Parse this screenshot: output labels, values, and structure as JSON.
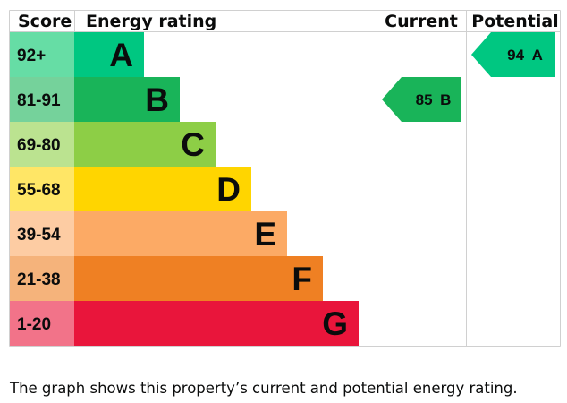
{
  "chart_data": {
    "type": "bar",
    "headers": {
      "score": "Score",
      "rating": "Energy rating",
      "current": "Current",
      "potential": "Potential"
    },
    "bands": [
      {
        "letter": "A",
        "range": "92+",
        "color": "#00c781",
        "score_color": "#66dda5"
      },
      {
        "letter": "B",
        "range": "81-91",
        "color": "#19b459",
        "score_color": "#75d29b"
      },
      {
        "letter": "C",
        "range": "69-80",
        "color": "#8dce46",
        "score_color": "#bbe390"
      },
      {
        "letter": "D",
        "range": "55-68",
        "color": "#ffd500",
        "score_color": "#ffe666"
      },
      {
        "letter": "E",
        "range": "39-54",
        "color": "#fcaa65",
        "score_color": "#fdcca3"
      },
      {
        "letter": "F",
        "range": "21-38",
        "color": "#ef8023",
        "score_color": "#f5b37b"
      },
      {
        "letter": "G",
        "range": "1-20",
        "color": "#e9153b",
        "score_color": "#f27389"
      }
    ],
    "current": {
      "value": 85,
      "band": "B",
      "label": "85 B"
    },
    "potential": {
      "value": 94,
      "band": "A",
      "label": "94 A"
    }
  },
  "caption": "The graph shows this property’s current and potential energy rating."
}
